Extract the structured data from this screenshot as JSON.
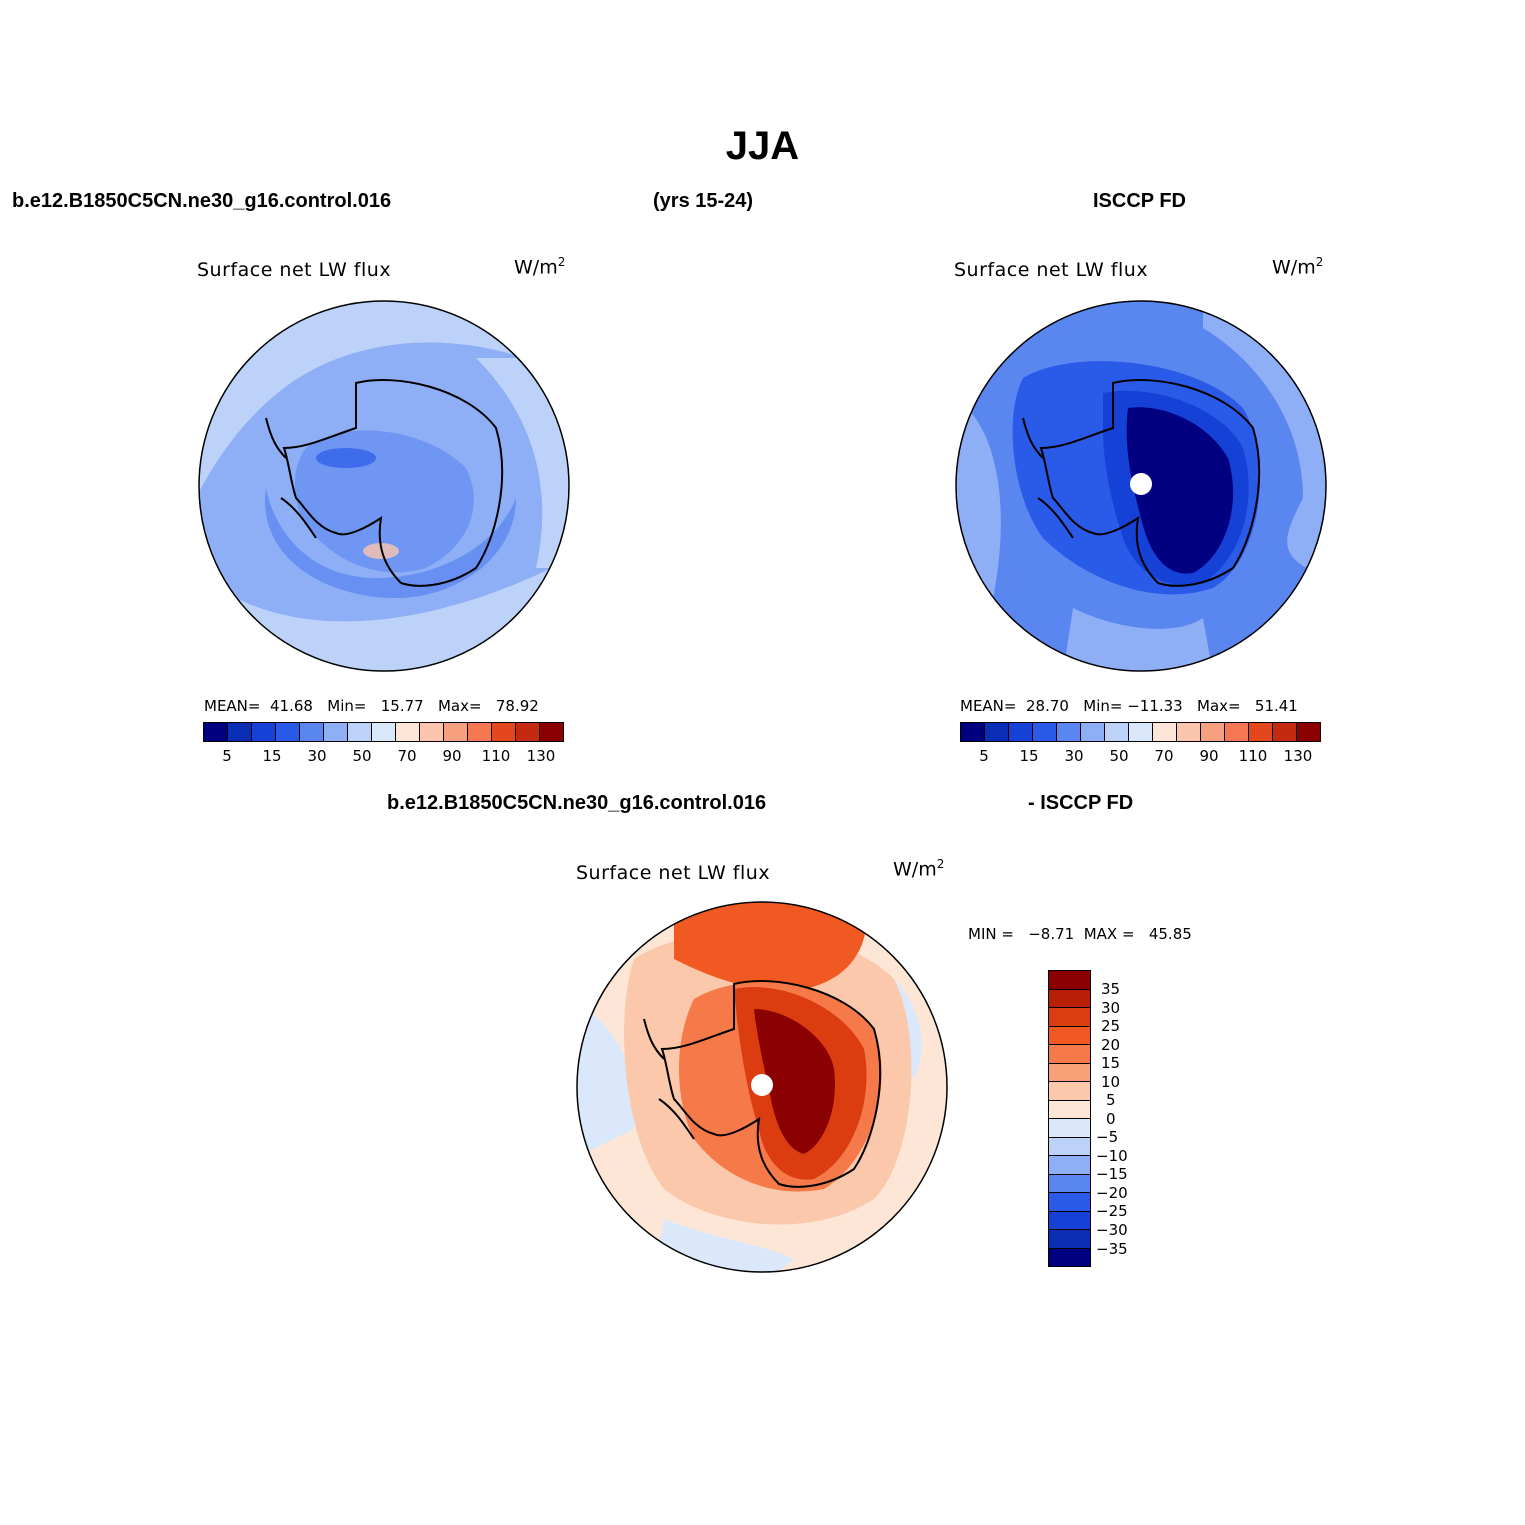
{
  "title": "JJA",
  "top_left_label": "b.e12.B1850C5CN.ne30_g16.control.016",
  "years_label": "(yrs 15-24)",
  "top_right_label": "ISCCP FD",
  "bottom_left_label": "b.e12.B1850C5CN.ne30_g16.control.016",
  "bottom_right_label": "- ISCCP FD",
  "panels": [
    {
      "title": "Surface net LW flux",
      "unit": "W/m",
      "unit_exp": "2",
      "stats": "MEAN=  41.68   Min=   15.77   Max=   78.92"
    },
    {
      "title": "Surface net LW flux",
      "unit": "W/m",
      "unit_exp": "2",
      "stats": "MEAN=  28.70   Min= −11.33   Max=   51.41"
    },
    {
      "title": "Surface net LW flux",
      "unit": "W/m",
      "unit_exp": "2",
      "stats": "MIN =   −8.71  MAX =   45.85"
    }
  ],
  "abs_colorbar": {
    "colors": [
      "#000080",
      "#0a2eb5",
      "#1641d6",
      "#2a5ae8",
      "#5a86f0",
      "#8eaef6",
      "#bcd2f9",
      "#dbe8fb",
      "#fde6d8",
      "#fbc6ad",
      "#f7a07f",
      "#f47652",
      "#e4461e",
      "#c42a10",
      "#8b0000"
    ],
    "labels": [
      "5",
      "15",
      "30",
      "50",
      "70",
      "90",
      "110",
      "130"
    ]
  },
  "diff_colorbar": {
    "colors": [
      "#8b0000",
      "#b81f06",
      "#dc3d10",
      "#f05a22",
      "#f67a49",
      "#f8a278",
      "#fbc8ab",
      "#fde6d6",
      "#dbe8fb",
      "#bcd2f9",
      "#8eaef6",
      "#5a86f0",
      "#2a5ae8",
      "#1641d6",
      "#0a2eb5",
      "#000080"
    ],
    "labels": [
      "35",
      "30",
      "25",
      "20",
      "15",
      "10",
      "5",
      "0",
      "−5",
      "−10",
      "−15",
      "−20",
      "−25",
      "−30",
      "−35"
    ]
  }
}
